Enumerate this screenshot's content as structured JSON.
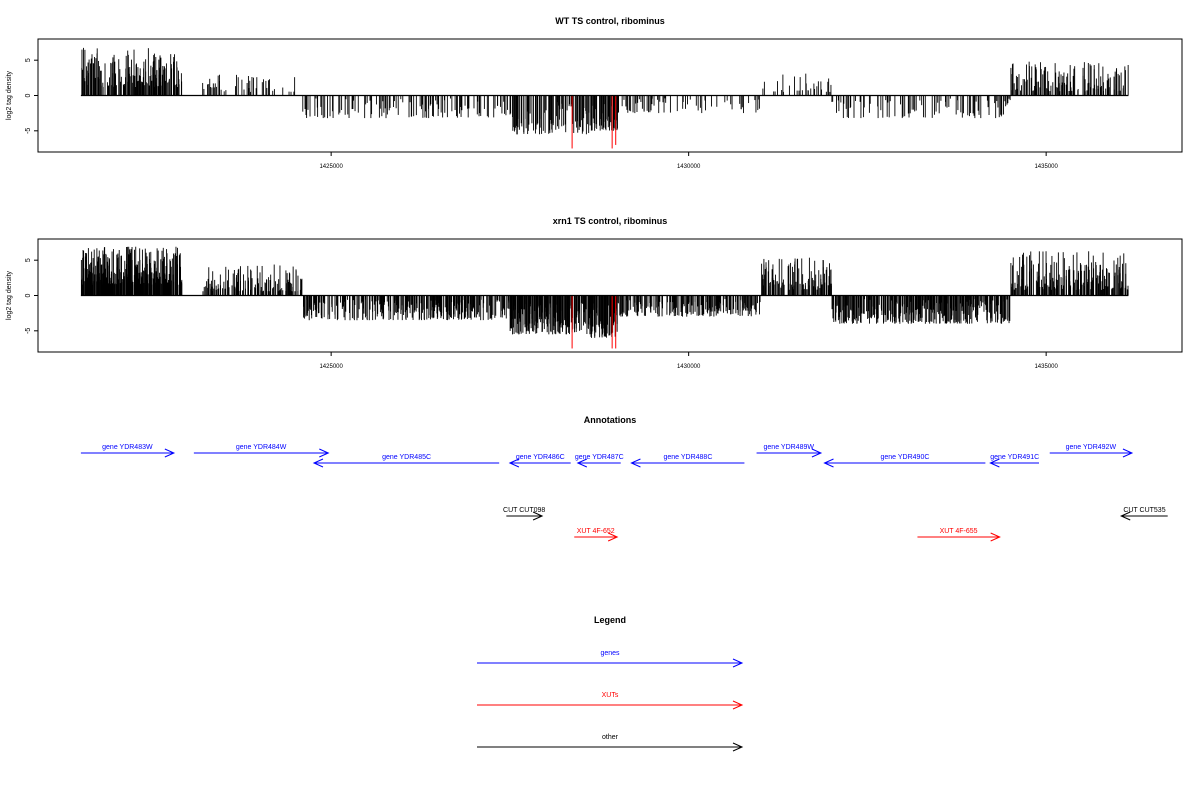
{
  "chart_data": [
    {
      "type": "bar",
      "title": "WT TS control, ribominus",
      "xlabel": "",
      "ylabel": "log2 tag density",
      "xlim": [
        1420900,
        1436900
      ],
      "ylim": [
        -8,
        8
      ],
      "xticks": [
        1425000,
        1430000,
        1435000
      ],
      "xtick_labels": [
        "1425000",
        "1430000",
        "1435000"
      ],
      "yticks": [
        -5,
        0,
        5
      ],
      "ytick_labels": [
        "-5",
        "0",
        "5"
      ],
      "baseline": {
        "from": 1421500,
        "to": 1436150,
        "value": 0
      },
      "grid": false,
      "colors": {
        "bars": "#000000",
        "highlight": "#ff0000"
      },
      "regions": [
        {
          "from": 1421500,
          "to": 1422900,
          "min": 1.2,
          "max": 6.8,
          "density": 3
        },
        {
          "from": 1423200,
          "to": 1424600,
          "min": 0.5,
          "max": 3.0,
          "density": 0.8
        },
        {
          "from": 1424600,
          "to": 1427500,
          "min": -3.2,
          "max": -0.4,
          "density": 0.9
        },
        {
          "from": 1427500,
          "to": 1428600,
          "min": -5.5,
          "max": -0.8,
          "density": 2
        },
        {
          "from": 1428600,
          "to": 1429000,
          "min": -5.0,
          "max": -1.0,
          "density": 3
        },
        {
          "from": 1429000,
          "to": 1431000,
          "min": -2.5,
          "max": -0.4,
          "density": 0.8
        },
        {
          "from": 1431000,
          "to": 1432000,
          "min": 0.5,
          "max": 3.2,
          "density": 0.8
        },
        {
          "from": 1432000,
          "to": 1434500,
          "min": -3.2,
          "max": -0.4,
          "density": 0.9
        },
        {
          "from": 1434500,
          "to": 1436150,
          "min": 0.6,
          "max": 4.8,
          "density": 2
        }
      ],
      "highlight_bars": [
        {
          "x": 1428370,
          "value": -7.5
        },
        {
          "x": 1428930,
          "value": -7.5
        },
        {
          "x": 1428980,
          "value": -7.0
        }
      ]
    },
    {
      "type": "bar",
      "title": "xrn1 TS control, ribominus",
      "xlabel": "",
      "ylabel": "log2 tag density",
      "xlim": [
        1420900,
        1436900
      ],
      "ylim": [
        -8,
        8
      ],
      "xticks": [
        1425000,
        1430000,
        1435000
      ],
      "xtick_labels": [
        "1425000",
        "1430000",
        "1435000"
      ],
      "yticks": [
        -5,
        0,
        5
      ],
      "ytick_labels": [
        "-5",
        "0",
        "5"
      ],
      "baseline": {
        "from": 1421500,
        "to": 1436150,
        "value": 0
      },
      "grid": false,
      "colors": {
        "bars": "#000000",
        "highlight": "#ff0000"
      },
      "regions": [
        {
          "from": 1421500,
          "to": 1422900,
          "min": 1.5,
          "max": 7.0,
          "density": 5
        },
        {
          "from": 1423200,
          "to": 1424600,
          "min": 0.6,
          "max": 4.5,
          "density": 2
        },
        {
          "from": 1424600,
          "to": 1427500,
          "min": -3.5,
          "max": -0.5,
          "density": 2.5
        },
        {
          "from": 1427500,
          "to": 1428600,
          "min": -5.5,
          "max": -1.0,
          "density": 4
        },
        {
          "from": 1428600,
          "to": 1429000,
          "min": -6.0,
          "max": -1.0,
          "density": 5
        },
        {
          "from": 1429000,
          "to": 1431000,
          "min": -3.0,
          "max": -0.5,
          "density": 2.5
        },
        {
          "from": 1431000,
          "to": 1432000,
          "min": 0.8,
          "max": 5.5,
          "density": 3
        },
        {
          "from": 1432000,
          "to": 1434500,
          "min": -4.0,
          "max": -0.5,
          "density": 3
        },
        {
          "from": 1434500,
          "to": 1436150,
          "min": 0.8,
          "max": 6.3,
          "density": 3
        }
      ],
      "highlight_bars": [
        {
          "x": 1428370,
          "value": -7.5
        },
        {
          "x": 1428930,
          "value": -7.5
        },
        {
          "x": 1428980,
          "value": -7.5
        }
      ]
    },
    {
      "type": "annotation-track",
      "title": "Annotations",
      "xlim": [
        1420900,
        1436900
      ],
      "colors": {
        "gene": "#0000ff",
        "XUT": "#ff0000",
        "other": "#000000"
      },
      "features": [
        {
          "label": "gene YDR483W",
          "start": 1421500,
          "end": 1422800,
          "strand": "+",
          "kind": "gene",
          "row": 1
        },
        {
          "label": "gene YDR484W",
          "start": 1423080,
          "end": 1424960,
          "strand": "+",
          "kind": "gene",
          "row": 1
        },
        {
          "label": "gene YDR485C",
          "start": 1424760,
          "end": 1427350,
          "strand": "-",
          "kind": "gene",
          "row": 2
        },
        {
          "label": "gene YDR486C",
          "start": 1427500,
          "end": 1428350,
          "strand": "-",
          "kind": "gene",
          "row": 2
        },
        {
          "label": "gene YDR487C",
          "start": 1428450,
          "end": 1429050,
          "strand": "-",
          "kind": "gene",
          "row": 2
        },
        {
          "label": "gene YDR488C",
          "start": 1429200,
          "end": 1430780,
          "strand": "-",
          "kind": "gene",
          "row": 2
        },
        {
          "label": "gene YDR489W",
          "start": 1430950,
          "end": 1431850,
          "strand": "+",
          "kind": "gene",
          "row": 1
        },
        {
          "label": "gene YDR490C",
          "start": 1431900,
          "end": 1434150,
          "strand": "-",
          "kind": "gene",
          "row": 2
        },
        {
          "label": "gene YDR491C",
          "start": 1434220,
          "end": 1434900,
          "strand": "-",
          "kind": "gene",
          "row": 2
        },
        {
          "label": "gene YDR492W",
          "start": 1435050,
          "end": 1436200,
          "strand": "+",
          "kind": "gene",
          "row": 1
        },
        {
          "label": "CUT CUT098",
          "start": 1427450,
          "end": 1427950,
          "strand": "+",
          "kind": "other",
          "row": 3
        },
        {
          "label": "XUT 4F-652",
          "start": 1428400,
          "end": 1429000,
          "strand": "+",
          "kind": "XUT",
          "row": 4
        },
        {
          "label": "XUT 4F-655",
          "start": 1433200,
          "end": 1434350,
          "strand": "+",
          "kind": "XUT",
          "row": 4
        },
        {
          "label": "CUT CUT535",
          "start": 1436050,
          "end": 1436700,
          "strand": "-",
          "kind": "other",
          "row": 3
        }
      ]
    },
    {
      "type": "legend",
      "title": "Legend",
      "entries": [
        {
          "label": "genes",
          "color": "#0000ff"
        },
        {
          "label": "XUTs",
          "color": "#ff0000"
        },
        {
          "label": "other",
          "color": "#000000"
        }
      ]
    }
  ]
}
